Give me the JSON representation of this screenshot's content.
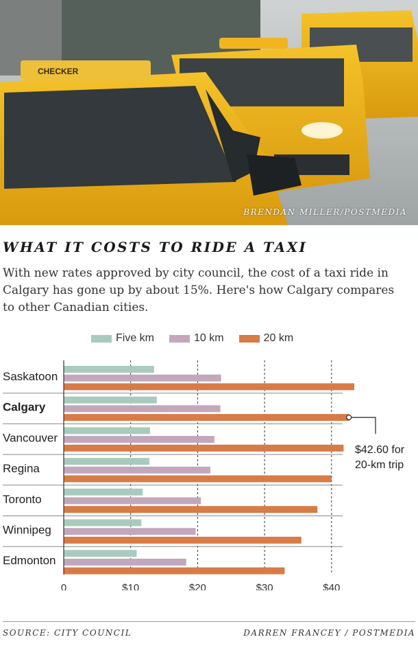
{
  "photo": {
    "credit": "BRENDAN MILLER/POSTMEDIA",
    "sign_text": "CHECKER"
  },
  "headline": "WHAT IT COSTS TO RIDE A TAXI",
  "intro": "With new rates approved by city council, the cost of a taxi ride in Calgary has gone up by about 15%. Here's how Calgary compares to other Canadian cities.",
  "colors": {
    "five_km": "#a9cbbd",
    "ten_km": "#c2a7bd",
    "twenty_km": "#d77b47"
  },
  "chart_data": {
    "type": "bar",
    "orientation": "horizontal",
    "categories": [
      "Saskatoon",
      "Calgary",
      "Vancouver",
      "Regina",
      "Toronto",
      "Winnipeg",
      "Edmonton"
    ],
    "highlight_category": "Calgary",
    "series": [
      {
        "name": "Five km",
        "values": [
          13.5,
          13.9,
          12.9,
          12.8,
          11.8,
          11.6,
          10.9
        ]
      },
      {
        "name": "10 km",
        "values": [
          23.5,
          23.4,
          22.5,
          21.9,
          20.5,
          19.7,
          18.3
        ]
      },
      {
        "name": "20 km",
        "values": [
          43.4,
          42.6,
          41.8,
          40.0,
          37.9,
          35.5,
          33.0
        ]
      }
    ],
    "x_ticks": [
      "0",
      "$10",
      "$20",
      "$30",
      "$40"
    ],
    "x_tick_values": [
      0,
      10,
      20,
      30,
      40
    ],
    "xlim": [
      0,
      44
    ],
    "grid": "vertical dashed",
    "legend": "top",
    "annotation": {
      "line1": "$42.60 for",
      "line2": "20-km trip",
      "category": "Calgary",
      "series": "20 km",
      "value": 42.6
    }
  },
  "footer": {
    "source": "SOURCE: CITY COUNCIL",
    "byline": "DARREN FRANCEY / POSTMEDIA"
  }
}
